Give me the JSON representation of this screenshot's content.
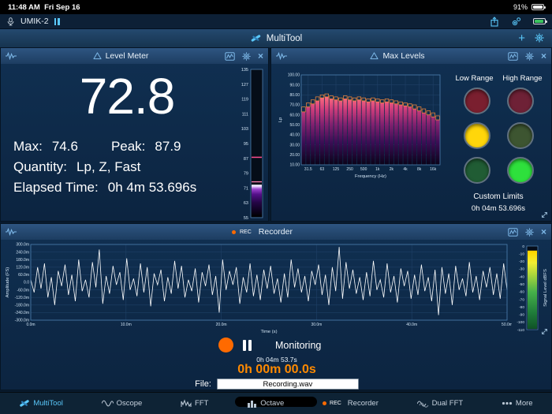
{
  "status_bar": {
    "time": "11:48 AM",
    "date": "Fri Sep 16",
    "battery_percent": "91%"
  },
  "device_bar": {
    "device_name": "UMIK-2"
  },
  "app_bar": {
    "title": "MultiTool"
  },
  "icons": {
    "plus": "+",
    "close": "×"
  },
  "level_meter": {
    "title": "Level Meter",
    "value_display": "72.8",
    "max_label": "Max:",
    "max_value": "74.6",
    "peak_label": "Peak:",
    "peak_value": "87.9",
    "quantity_label": "Quantity:",
    "quantity_value": "Lp, Z, Fast",
    "elapsed_label": "Elapsed Time:",
    "elapsed_value": "0h 4m 53.696s",
    "meter": {
      "min": 55,
      "max": 135,
      "ticks": [
        135,
        127,
        119,
        111,
        103,
        95,
        87,
        79,
        71,
        63,
        55
      ],
      "value": 72.8,
      "max_hold": 74.6,
      "peak": 87.9
    }
  },
  "max_levels": {
    "title": "Max Levels",
    "low_range_label": "Low Range",
    "high_range_label": "High Range",
    "custom_limits_label": "Custom Limits",
    "elapsed": "0h 04m 53.696s",
    "indicators": [
      {
        "name": "low-red",
        "color": "#7a1f2f"
      },
      {
        "name": "high-red",
        "color": "#6e2136"
      },
      {
        "name": "low-yellow",
        "color": "#ffd60a"
      },
      {
        "name": "high-yellow",
        "color": "#3d5531"
      },
      {
        "name": "low-green",
        "color": "#205c34"
      },
      {
        "name": "high-green",
        "color": "#2ee03c"
      }
    ],
    "chart": {
      "type": "bar",
      "ylabel": "Lp",
      "xlabel": "Frequency (Hz)",
      "ylim": [
        10,
        100
      ],
      "y_ticks": [
        100,
        90,
        80,
        70,
        60,
        50,
        40,
        30,
        20,
        10
      ],
      "y_tick_labels": [
        "100.00",
        "90.00",
        "80.00",
        "70.00",
        "60.00",
        "50.00",
        "40.00",
        "30.00",
        "20.00",
        "10.00"
      ],
      "x_tick_labels": [
        "31.5",
        "63",
        "125",
        "250",
        "500",
        "1k",
        "2k",
        "4k",
        "8k",
        "16k"
      ],
      "x_tick_band_index": [
        1,
        4,
        7,
        10,
        13,
        16,
        19,
        22,
        25,
        28
      ],
      "values": [
        63,
        68,
        71,
        74,
        77,
        78,
        76,
        75,
        74,
        76,
        75,
        74,
        75,
        74,
        73,
        74,
        73,
        72,
        73,
        72,
        71,
        70,
        69,
        68,
        66,
        64,
        62,
        60,
        58,
        55
      ],
      "max_values": [
        68,
        72,
        75,
        78,
        80,
        81,
        79,
        78,
        77,
        79,
        78,
        77,
        78,
        77,
        76,
        77,
        76,
        75,
        76,
        75,
        74,
        73,
        72,
        71,
        70,
        68,
        66,
        64,
        62,
        59
      ]
    }
  },
  "recorder": {
    "title": "Recorder",
    "rec_badge": "REC",
    "monitoring_label": "Monitoring",
    "elapsed_total": "0h 04m 53.7s",
    "elapsed_current": "0h 00m 00.0s",
    "file_label": "File:",
    "file_name": "Recording.wav",
    "chart": {
      "type": "line",
      "ylabel": "Amplitude (FS)",
      "xlabel": "Time (s)",
      "ylim": [
        -0.3,
        0.3
      ],
      "y_tick_labels": [
        "300.0m",
        "240.0m",
        "180.0m",
        "120.0m",
        "60.0m",
        "0.0",
        "-60.0m",
        "-120.0m",
        "-180.0m",
        "-240.0m",
        "-300.0m"
      ],
      "x_tick_labels": [
        "0.0m",
        "10.0m",
        "20.0m",
        "30.0m",
        "40.0m",
        "50.0m"
      ],
      "samples": [
        0.02,
        -0.08,
        0.12,
        -0.05,
        0.15,
        -0.12,
        0.04,
        -0.18,
        0.09,
        -0.03,
        0.14,
        -0.1,
        0.06,
        -0.15,
        0.18,
        -0.07,
        0.02,
        -0.12,
        0.16,
        -0.04,
        0.26,
        -0.17,
        0.05,
        -0.09,
        0.13,
        -0.02,
        0.08,
        -0.14,
        0.19,
        -0.06,
        0.03,
        -0.11,
        0.15,
        -0.08,
        0.12,
        -0.19,
        0.07,
        -0.02,
        0.1,
        -0.15,
        0.04,
        -0.09,
        0.17,
        -0.05,
        0.13,
        -0.12,
        0.02,
        -0.07,
        0.11,
        -0.16,
        0.08,
        -0.03,
        0.14,
        -0.1,
        0.05,
        -0.24,
        0.18,
        -0.06,
        0.09,
        -0.02,
        0.12,
        -0.17,
        0.04,
        -0.08,
        0.15,
        -0.11,
        0.06,
        -0.14,
        0.1,
        -0.05,
        0.13,
        -0.09,
        0.03,
        -0.16,
        0.07,
        -0.12,
        0.18,
        -0.04,
        0.11,
        -0.08,
        0.05,
        -0.15,
        0.09,
        -0.02,
        0.14,
        -0.1,
        0.06,
        -0.18,
        0.12,
        -0.07,
        0.28,
        -0.13,
        0.16,
        -0.05,
        0.1,
        -0.09,
        0.04,
        -0.14,
        0.08,
        -0.11,
        0.17,
        -0.06,
        0.02,
        -0.12,
        0.15,
        -0.08,
        0.05,
        -0.16,
        0.11,
        -0.03,
        0.09,
        -0.13,
        0.06,
        -0.1,
        0.14,
        -0.07,
        0.04,
        -0.15,
        0.1,
        -0.26,
        0.12,
        -0.09,
        0.07,
        -0.18,
        0.13,
        -0.06,
        0.03,
        -0.11,
        0.16,
        -0.08,
        0.05,
        -0.14,
        0.09,
        -0.04,
        0.12,
        -0.1,
        0.07,
        -0.13,
        0.15,
        -0.06
      ]
    },
    "signal_meter": {
      "label": "Signal Level dBFS",
      "ticks": [
        0,
        -10,
        -20,
        -30,
        -40,
        -50,
        -60,
        -70,
        -80,
        -90,
        -100,
        -110
      ],
      "min": -110,
      "max": 0,
      "value": -6
    }
  },
  "tab_bar": {
    "items": [
      {
        "label": "MultiTool"
      },
      {
        "label": "Oscope"
      },
      {
        "label": "FFT"
      },
      {
        "label": "Octave"
      },
      {
        "label": "Recorder",
        "badge": "REC"
      },
      {
        "label": "Dual FFT"
      },
      {
        "label": "More"
      }
    ]
  }
}
